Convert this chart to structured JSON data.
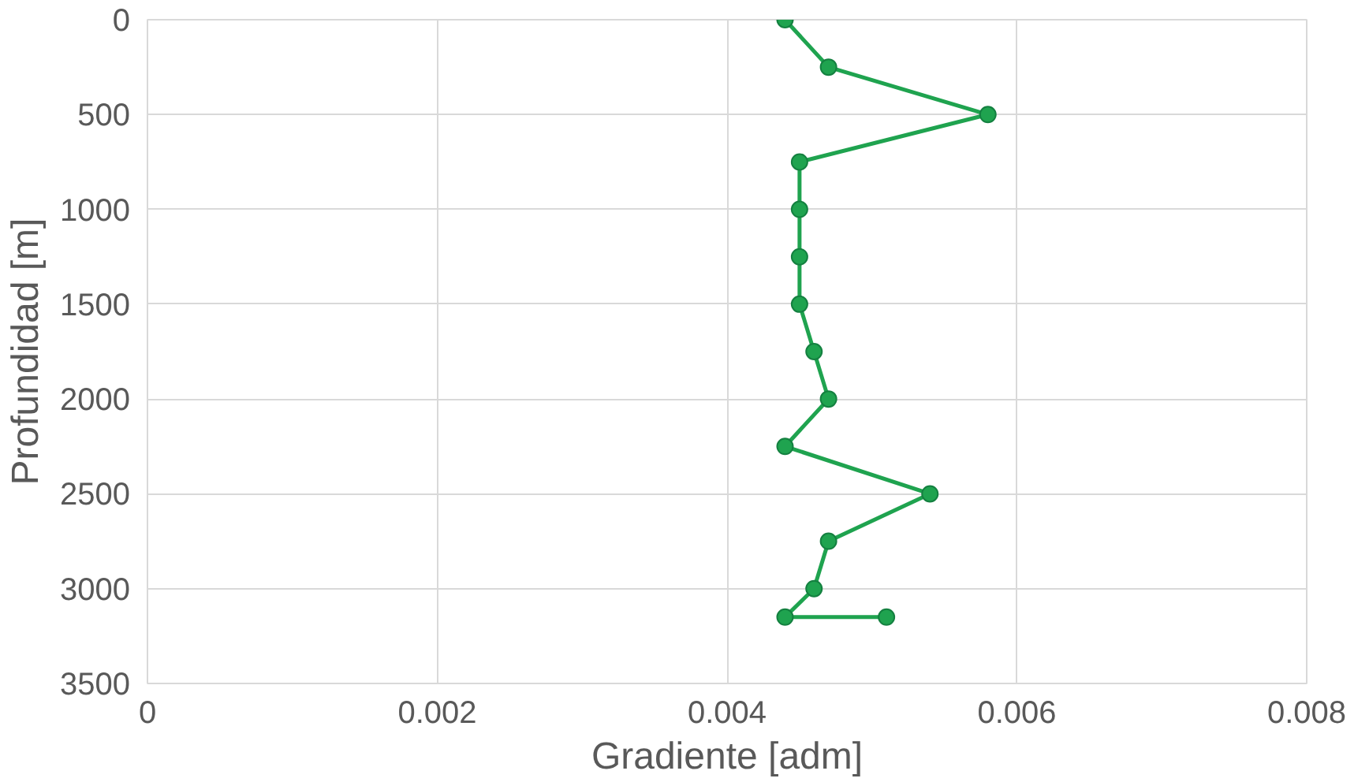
{
  "chart_data": {
    "type": "line",
    "xlabel": "Gradiente [adm]",
    "ylabel": "Profundidad [m]",
    "x": [
      0.0044,
      0.0047,
      0.0058,
      0.0045,
      0.0045,
      0.0045,
      0.0045,
      0.0046,
      0.0047,
      0.0044,
      0.0054,
      0.0047,
      0.0046,
      0.0044,
      0.0051
    ],
    "series": [
      {
        "color": "#1fa34f",
        "values": [
          0,
          250,
          500,
          750,
          1000,
          1250,
          1500,
          1750,
          2000,
          2250,
          2500,
          2750,
          3000,
          3150,
          3150
        ]
      }
    ],
    "xlim": [
      0,
      0.008
    ],
    "xticks": [
      0,
      0.002,
      0.004,
      0.006,
      0.008
    ],
    "ylim": [
      3500,
      0
    ],
    "yticks": [
      0,
      500,
      1000,
      1500,
      2000,
      2500,
      3000,
      3500
    ],
    "grid": true,
    "marker": "circle",
    "line_style": "solid"
  }
}
